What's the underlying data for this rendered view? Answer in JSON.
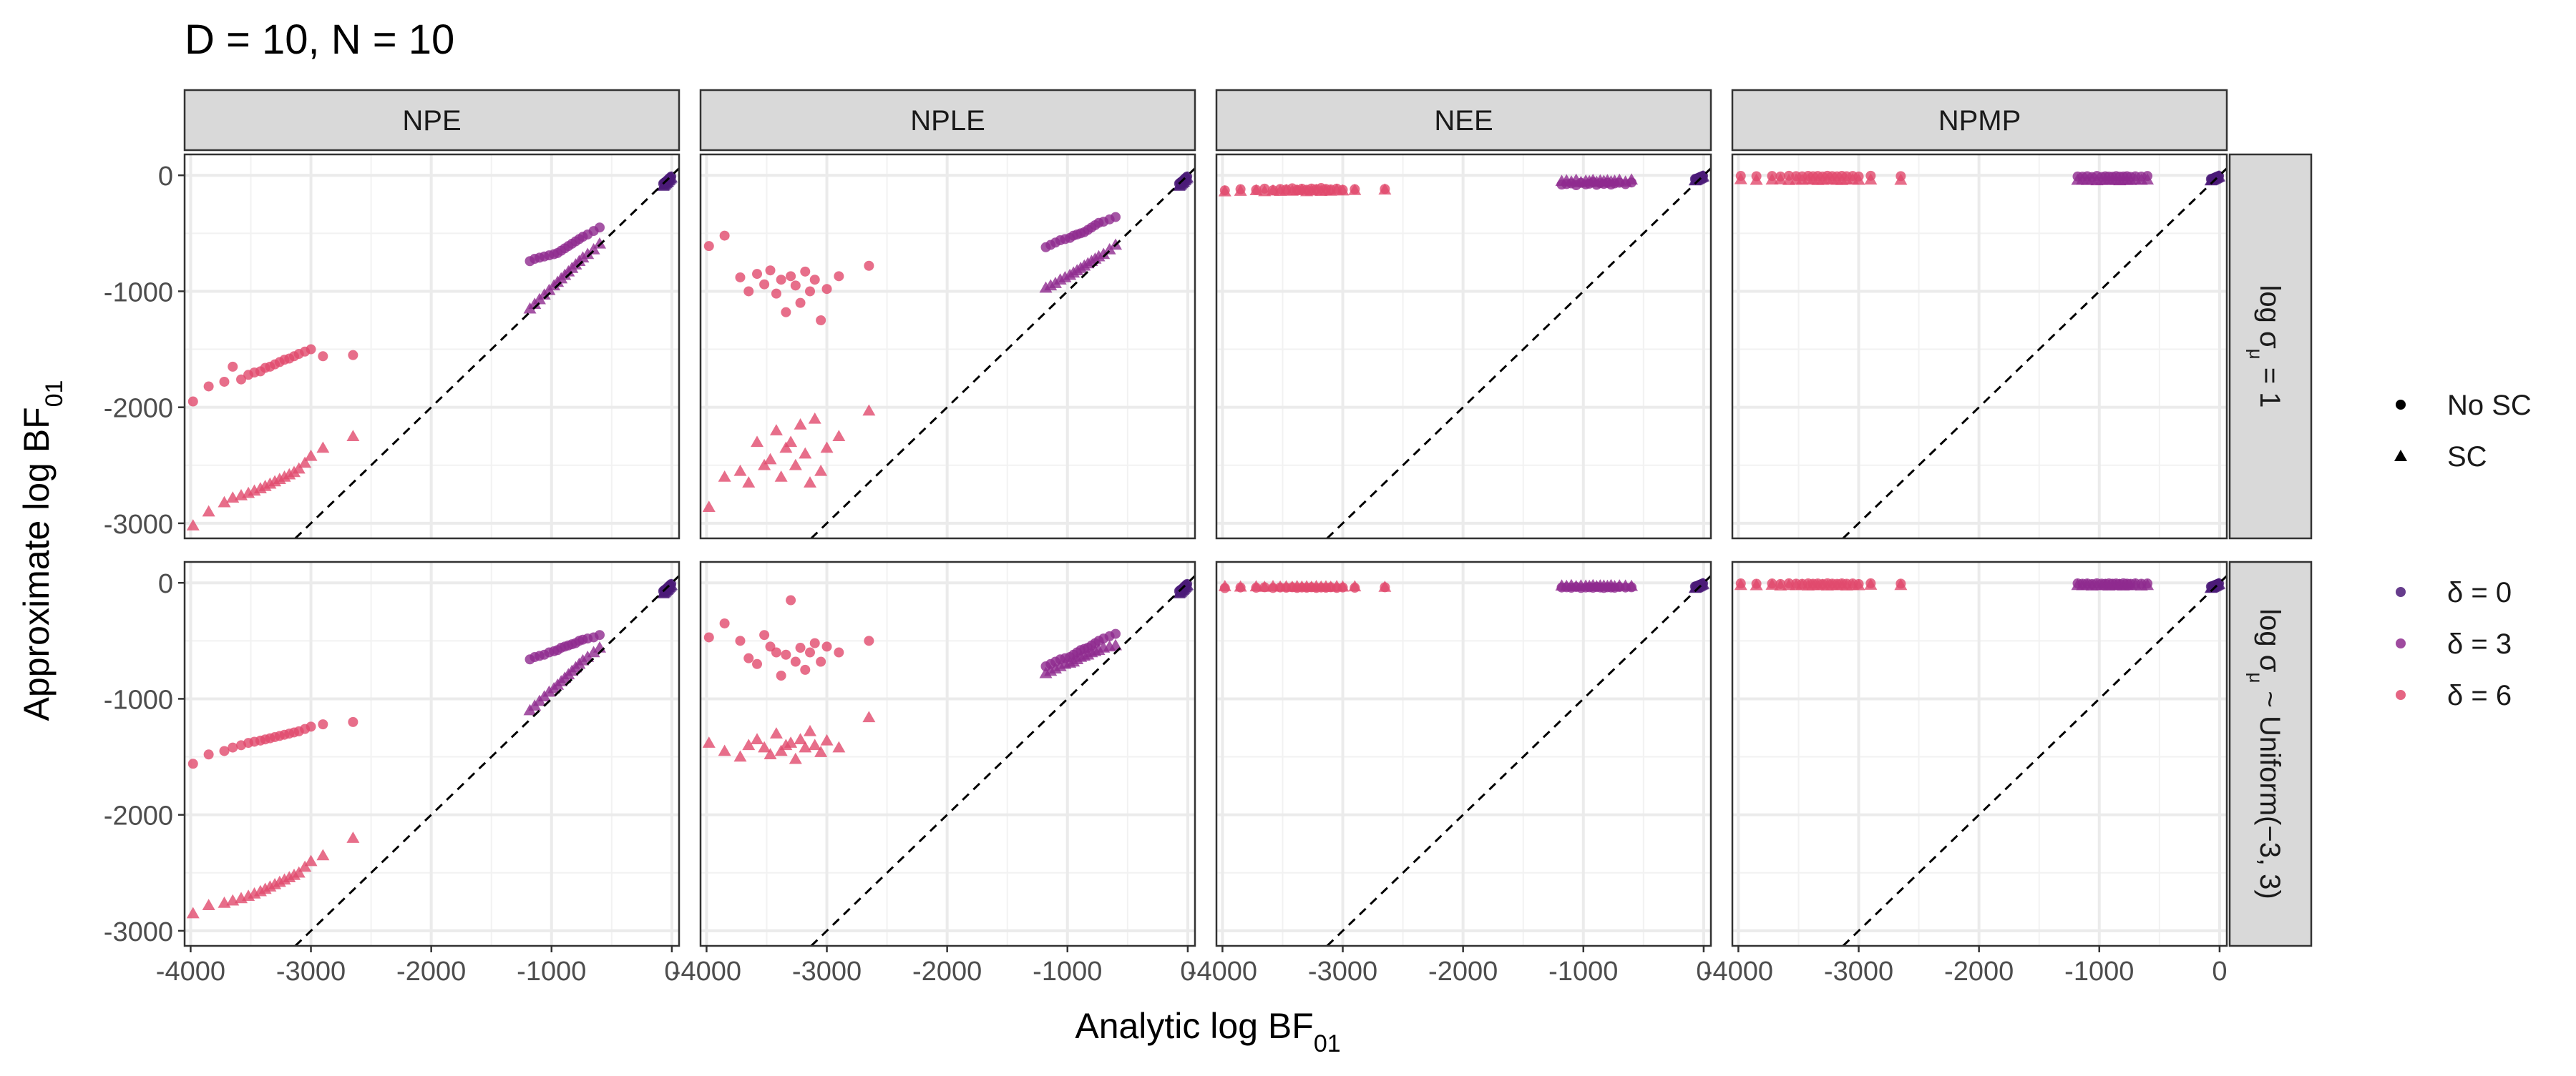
{
  "chart_data": {
    "type": "scatter",
    "title": "D = 10, N = 10",
    "xlabel": "Analytic log BF",
    "xlabel_sub": "01",
    "ylabel": "Approximate log BF",
    "ylabel_sub": "01",
    "xlim": [
      -4050,
      60
    ],
    "ylim": [
      -3130,
      180
    ],
    "x_ticks": [
      -4000,
      -3000,
      -2000,
      -1000,
      0
    ],
    "y_ticks": [
      0,
      -1000,
      -2000,
      -3000
    ],
    "x_tick_labels": [
      "-4000",
      "-3000",
      "-2000",
      "-1000",
      "0"
    ],
    "y_tick_labels": [
      "0",
      "-1000",
      "-2000",
      "-3000"
    ],
    "grid": true,
    "reference_line": "y = x (dashed)",
    "columns": [
      "NPE",
      "NPLE",
      "NEE",
      "NPMP"
    ],
    "rows": [
      {
        "id": "fixed",
        "prefix": "log σ",
        "sub": "μ",
        "suffix": " = 1"
      },
      {
        "id": "uniform",
        "prefix": "log σ",
        "sub": "μ",
        "suffix": " ~ Uniform(−3, 3)"
      }
    ],
    "legend_shape": {
      "position": "right",
      "entries": [
        {
          "label": "No SC",
          "shape": "circle"
        },
        {
          "label": "SC",
          "shape": "triangle"
        }
      ]
    },
    "legend_color": {
      "position": "right",
      "entries": [
        {
          "label": "δ = 0",
          "symbol": "δ",
          "value": "0",
          "color": "#4B1A78"
        },
        {
          "label": "δ = 3",
          "symbol": "δ",
          "value": "3",
          "color": "#8E2B8E"
        },
        {
          "label": "δ = 6",
          "symbol": "δ",
          "value": "6",
          "color": "#E14A6D"
        }
      ]
    },
    "colors": {
      "d0": "#4B1A78",
      "d3": "#8E2B8E",
      "d6": "#E14A6D"
    },
    "analytic_x": {
      "d0": [
        -5,
        -12,
        -20,
        -28,
        -35,
        -42,
        -50,
        -58,
        -65,
        -72
      ],
      "d3": [
        -1180,
        -1140,
        -1100,
        -1060,
        -1020,
        -980,
        -950,
        -920,
        -890,
        -860,
        -830,
        -800,
        -770,
        -740,
        -700,
        -650,
        -600
      ],
      "d6": [
        -3980,
        -3850,
        -3720,
        -3650,
        -3580,
        -3520,
        -3470,
        -3420,
        -3380,
        -3340,
        -3300,
        -3260,
        -3220,
        -3180,
        -3140,
        -3100,
        -3050,
        -3000,
        -2900,
        -2650
      ]
    },
    "panels": [
      {
        "row": 0,
        "col": 0,
        "method": "NPE",
        "d0": {
          "nosc": [
            -10,
            -18,
            -25,
            -33,
            -40,
            -48,
            -55,
            -60,
            -66,
            -72
          ],
          "sc": [
            -20,
            -28,
            -38,
            -45,
            -55,
            -62,
            -70,
            -78,
            -85,
            -92
          ]
        },
        "d3": {
          "nosc": [
            -740,
            -720,
            -710,
            -700,
            -690,
            -680,
            -670,
            -650,
            -630,
            -610,
            -590,
            -570,
            -550,
            -530,
            -510,
            -480,
            -450
          ],
          "sc": [
            -1150,
            -1110,
            -1070,
            -1030,
            -990,
            -950,
            -920,
            -890,
            -860,
            -830,
            -800,
            -770,
            -740,
            -710,
            -680,
            -640,
            -590
          ]
        },
        "d6": {
          "nosc": [
            -1950,
            -1820,
            -1780,
            -1650,
            -1760,
            -1720,
            -1700,
            -1690,
            -1660,
            -1650,
            -1630,
            -1610,
            -1590,
            -1580,
            -1560,
            -1540,
            -1520,
            -1500,
            -1560,
            -1550
          ],
          "sc": [
            -3020,
            -2900,
            -2820,
            -2780,
            -2760,
            -2740,
            -2720,
            -2700,
            -2680,
            -2660,
            -2640,
            -2620,
            -2600,
            -2580,
            -2560,
            -2530,
            -2480,
            -2420,
            -2350,
            -2250
          ]
        }
      },
      {
        "row": 0,
        "col": 1,
        "method": "NPLE",
        "d0": {
          "nosc": [
            -10,
            -18,
            -25,
            -33,
            -40,
            -48,
            -55,
            -60,
            -66,
            -72
          ],
          "sc": [
            -20,
            -28,
            -38,
            -45,
            -55,
            -62,
            -70,
            -78,
            -85,
            -92
          ]
        },
        "d3": {
          "nosc": [
            -620,
            -600,
            -580,
            -560,
            -550,
            -540,
            -520,
            -510,
            -500,
            -490,
            -470,
            -450,
            -430,
            -410,
            -400,
            -380,
            -360
          ],
          "sc": [
            -970,
            -950,
            -930,
            -900,
            -880,
            -860,
            -840,
            -820,
            -800,
            -780,
            -760,
            -740,
            -720,
            -700,
            -680,
            -640,
            -600
          ]
        },
        "d6": {
          "nosc": [
            -610,
            -520,
            -880,
            -1000,
            -850,
            -940,
            -820,
            -1020,
            -900,
            -1180,
            -870,
            -950,
            -1100,
            -830,
            -1000,
            -900,
            -1250,
            -980,
            -870,
            -780
          ],
          "sc": [
            -2860,
            -2600,
            -2550,
            -2650,
            -2300,
            -2500,
            -2450,
            -2200,
            -2600,
            -2350,
            -2300,
            -2500,
            -2150,
            -2400,
            -2650,
            -2100,
            -2550,
            -2350,
            -2250,
            -2030
          ]
        }
      },
      {
        "row": 0,
        "col": 2,
        "method": "NEE",
        "d0": {
          "nosc": [
            -5,
            -8,
            -12,
            -15,
            -18,
            -22,
            -25,
            -28,
            -30,
            -32
          ],
          "sc": [
            -10,
            -14,
            -18,
            -22,
            -26,
            -30,
            -34,
            -38,
            -42,
            -45
          ]
        },
        "d3": {
          "nosc": [
            -80,
            -75,
            -70,
            -85,
            -65,
            -78,
            -72,
            -60,
            -82,
            -68,
            -74,
            -66,
            -80,
            -70,
            -64,
            -76,
            -62
          ],
          "sc": [
            -50,
            -45,
            -55,
            -40,
            -60,
            -48,
            -52,
            -42,
            -58,
            -46,
            -50,
            -44,
            -54,
            -48,
            -40,
            -56,
            -38
          ]
        },
        "d6": {
          "nosc": [
            -130,
            -120,
            -125,
            -115,
            -128,
            -118,
            -122,
            -112,
            -126,
            -116,
            -124,
            -114,
            -120,
            -110,
            -118,
            -122,
            -115,
            -125,
            -120,
            -118
          ],
          "sc": [
            -140,
            -135,
            -130,
            -138,
            -132,
            -136,
            -128,
            -134,
            -130,
            -126,
            -138,
            -132,
            -128,
            -136,
            -130,
            -134,
            -126,
            -132,
            -128,
            -124
          ]
        }
      },
      {
        "row": 0,
        "col": 3,
        "method": "NPMP",
        "d0": {
          "nosc": [
            -5,
            -8,
            -12,
            -15,
            -18,
            -22,
            -25,
            -28,
            -30,
            -32
          ],
          "sc": [
            -10,
            -14,
            -18,
            -22,
            -26,
            -30,
            -34,
            -38,
            -42,
            -45
          ]
        },
        "d3": {
          "nosc": [
            -10,
            -12,
            -8,
            -15,
            -6,
            -14,
            -9,
            -11,
            -13,
            -7,
            -12,
            -10,
            -8,
            -14,
            -9,
            -11,
            -6
          ],
          "sc": [
            -40,
            -38,
            -42,
            -36,
            -44,
            -40,
            -38,
            -42,
            -36,
            -40,
            -44,
            -38,
            -40,
            -42,
            -36,
            -40,
            -38
          ]
        },
        "d6": {
          "nosc": [
            -5,
            -8,
            -6,
            -10,
            -4,
            -7,
            -9,
            -5,
            -8,
            -6,
            -10,
            -4,
            -7,
            -9,
            -5,
            -8,
            -6,
            -10,
            -4,
            -7
          ],
          "sc": [
            -35,
            -40,
            -38,
            -36,
            -42,
            -38,
            -40,
            -36,
            -38,
            -42,
            -40,
            -36,
            -38,
            -40,
            -42,
            -38,
            -36,
            -40,
            -38,
            -40
          ]
        }
      },
      {
        "row": 1,
        "col": 0,
        "method": "NPE",
        "d0": {
          "nosc": [
            -10,
            -18,
            -25,
            -33,
            -40,
            -48,
            -55,
            -60,
            -66,
            -72
          ],
          "sc": [
            -20,
            -28,
            -38,
            -45,
            -55,
            -62,
            -70,
            -78,
            -85,
            -92
          ]
        },
        "d3": {
          "nosc": [
            -660,
            -640,
            -630,
            -620,
            -600,
            -590,
            -580,
            -560,
            -550,
            -540,
            -530,
            -520,
            -500,
            -490,
            -480,
            -470,
            -450
          ],
          "sc": [
            -1100,
            -1060,
            -1020,
            -980,
            -940,
            -910,
            -880,
            -850,
            -820,
            -790,
            -760,
            -730,
            -700,
            -670,
            -640,
            -600,
            -560
          ]
        },
        "d6": {
          "nosc": [
            -1560,
            -1480,
            -1450,
            -1420,
            -1400,
            -1380,
            -1370,
            -1360,
            -1350,
            -1340,
            -1330,
            -1320,
            -1310,
            -1300,
            -1290,
            -1280,
            -1260,
            -1240,
            -1220,
            -1200
          ],
          "sc": [
            -2850,
            -2780,
            -2760,
            -2740,
            -2720,
            -2700,
            -2680,
            -2660,
            -2640,
            -2620,
            -2600,
            -2580,
            -2560,
            -2540,
            -2520,
            -2500,
            -2450,
            -2400,
            -2350,
            -2200
          ]
        }
      },
      {
        "row": 1,
        "col": 1,
        "method": "NPLE",
        "d0": {
          "nosc": [
            -10,
            -18,
            -25,
            -33,
            -40,
            -48,
            -55,
            -60,
            -66,
            -72
          ],
          "sc": [
            -20,
            -28,
            -38,
            -45,
            -55,
            -62,
            -70,
            -78,
            -85,
            -92
          ]
        },
        "d3": {
          "nosc": [
            -720,
            -700,
            -680,
            -660,
            -650,
            -640,
            -620,
            -600,
            -580,
            -570,
            -560,
            -540,
            -520,
            -500,
            -480,
            -460,
            -440
          ],
          "sc": [
            -780,
            -760,
            -740,
            -720,
            -700,
            -690,
            -680,
            -660,
            -640,
            -630,
            -620,
            -600,
            -590,
            -580,
            -560,
            -550,
            -540
          ]
        },
        "d6": {
          "nosc": [
            -470,
            -350,
            -500,
            -650,
            -700,
            -450,
            -550,
            -600,
            -800,
            -620,
            -150,
            -680,
            -560,
            -750,
            -600,
            -520,
            -680,
            -550,
            -600,
            -500
          ],
          "sc": [
            -1380,
            -1450,
            -1500,
            -1400,
            -1350,
            -1420,
            -1480,
            -1300,
            -1450,
            -1400,
            -1380,
            -1520,
            -1350,
            -1420,
            -1280,
            -1400,
            -1460,
            -1360,
            -1420,
            -1160
          ]
        }
      },
      {
        "row": 1,
        "col": 2,
        "method": "NEE",
        "d0": {
          "nosc": [
            -5,
            -8,
            -12,
            -15,
            -18,
            -22,
            -25,
            -28,
            -30,
            -32
          ],
          "sc": [
            -10,
            -14,
            -18,
            -22,
            -26,
            -30,
            -34,
            -38,
            -42,
            -45
          ]
        },
        "d3": {
          "nosc": [
            -40,
            -38,
            -42,
            -36,
            -44,
            -40,
            -38,
            -42,
            -36,
            -40,
            -44,
            -38,
            -40,
            -42,
            -36,
            -40,
            -38
          ],
          "sc": [
            -25,
            -28,
            -22,
            -30,
            -24,
            -26,
            -28,
            -22,
            -30,
            -24,
            -26,
            -28,
            -22,
            -30,
            -24,
            -26,
            -28
          ]
        },
        "d6": {
          "nosc": [
            -45,
            -40,
            -42,
            -38,
            -44,
            -40,
            -42,
            -38,
            -44,
            -40,
            -42,
            -38,
            -44,
            -40,
            -42,
            -38,
            -44,
            -40,
            -42,
            -38
          ],
          "sc": [
            -30,
            -34,
            -32,
            -36,
            -30,
            -34,
            -32,
            -36,
            -30,
            -34,
            -32,
            -36,
            -30,
            -34,
            -32,
            -36,
            -30,
            -34,
            -32,
            -36
          ]
        }
      },
      {
        "row": 1,
        "col": 3,
        "method": "NPMP",
        "d0": {
          "nosc": [
            -5,
            -8,
            -12,
            -15,
            -18,
            -22,
            -25,
            -28,
            -30,
            -32
          ],
          "sc": [
            -10,
            -14,
            -18,
            -22,
            -26,
            -30,
            -34,
            -38,
            -42,
            -45
          ]
        },
        "d3": {
          "nosc": [
            -5,
            -8,
            -6,
            -10,
            -4,
            -7,
            -9,
            -5,
            -8,
            -6,
            -10,
            -4,
            -7,
            -9,
            -5,
            -8,
            -6
          ],
          "sc": [
            -20,
            -22,
            -18,
            -24,
            -20,
            -22,
            -18,
            -24,
            -20,
            -22,
            -18,
            -24,
            -20,
            -22,
            -18,
            -24,
            -20
          ]
        },
        "d6": {
          "nosc": [
            -5,
            -8,
            -6,
            -10,
            -4,
            -7,
            -9,
            -5,
            -8,
            -6,
            -10,
            -4,
            -7,
            -9,
            -5,
            -8,
            -6,
            -10,
            -4,
            -7
          ],
          "sc": [
            -20,
            -22,
            -18,
            -24,
            -20,
            -22,
            -18,
            -24,
            -20,
            -22,
            -18,
            -24,
            -20,
            -22,
            -18,
            -24,
            -20,
            -22,
            -18,
            -20
          ]
        }
      }
    ]
  }
}
